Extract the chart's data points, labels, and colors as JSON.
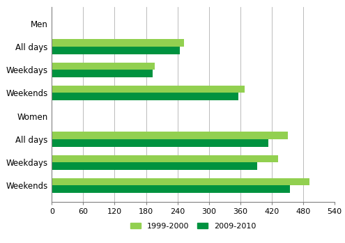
{
  "categories": [
    "Weekends",
    "Weekdays",
    "All days",
    "Women",
    "Weekends",
    "Weekdays",
    "All days",
    "Men"
  ],
  "values_1999": [
    492,
    432,
    450,
    0,
    368,
    196,
    252,
    0
  ],
  "values_2009": [
    454,
    392,
    413,
    0,
    356,
    192,
    244,
    0
  ],
  "color_1999": "#92d050",
  "color_2009": "#00923f",
  "xlim": [
    0,
    540
  ],
  "xticks": [
    0,
    60,
    120,
    180,
    240,
    300,
    360,
    420,
    480,
    540
  ],
  "legend_1999": "1999-2000",
  "legend_2009": "2009-2010",
  "background_color": "#ffffff",
  "bar_height": 0.32,
  "tick_fontsize": 8,
  "label_fontsize": 8.5
}
